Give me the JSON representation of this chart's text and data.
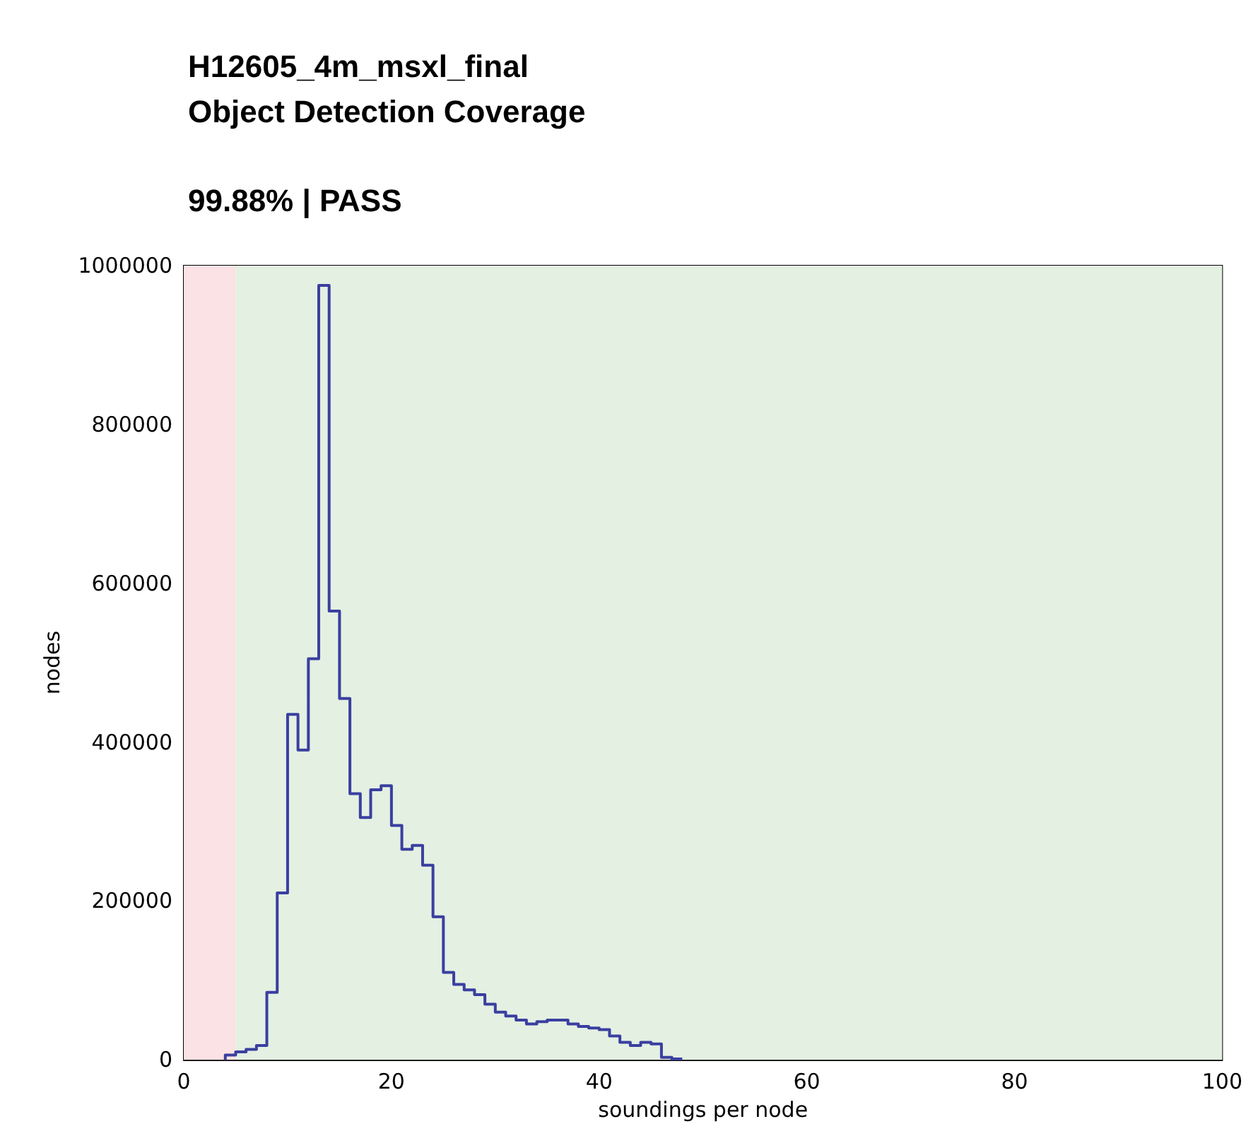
{
  "chart_data": {
    "type": "histogram",
    "title": "H12605_4m_msxl_final\nObject Detection Coverage",
    "subtitle": "99.88% | PASS",
    "xlabel": "soundings per node",
    "ylabel": "nodes",
    "bins": [
      4,
      5,
      6,
      7,
      8,
      9,
      10,
      11,
      12,
      13,
      14,
      15,
      16,
      17,
      18,
      19,
      20,
      21,
      22,
      23,
      24,
      25,
      26,
      27,
      28,
      29,
      30,
      31,
      32,
      33,
      34,
      35,
      36,
      37,
      38,
      39,
      40,
      41,
      42,
      43,
      44,
      45,
      46,
      47,
      48
    ],
    "values": [
      6000,
      10000,
      13000,
      18000,
      85000,
      210000,
      435000,
      390000,
      505000,
      975000,
      565000,
      455000,
      335000,
      305000,
      340000,
      345000,
      295000,
      265000,
      270000,
      245000,
      180000,
      110000,
      95000,
      88000,
      82000,
      70000,
      60000,
      55000,
      50000,
      45000,
      48000,
      50000,
      50000,
      45000,
      42000,
      40000,
      38000,
      30000,
      22000,
      18000,
      22000,
      20000,
      3000,
      1000
    ],
    "color": "#3a3fa0",
    "xlim": [
      0,
      100
    ],
    "xticks": [
      0,
      20,
      40,
      60,
      80,
      100
    ],
    "ylim": [
      0,
      1000000
    ],
    "yticks": [
      0,
      200000,
      400000,
      600000,
      800000,
      1000000
    ],
    "bands": [
      {
        "axis": "x",
        "from": 0,
        "to": 5,
        "color": "#fbe2e4"
      },
      {
        "axis": "x",
        "from": 5,
        "to": 100,
        "color": "#e4f0e2"
      }
    ],
    "grid": false
  }
}
